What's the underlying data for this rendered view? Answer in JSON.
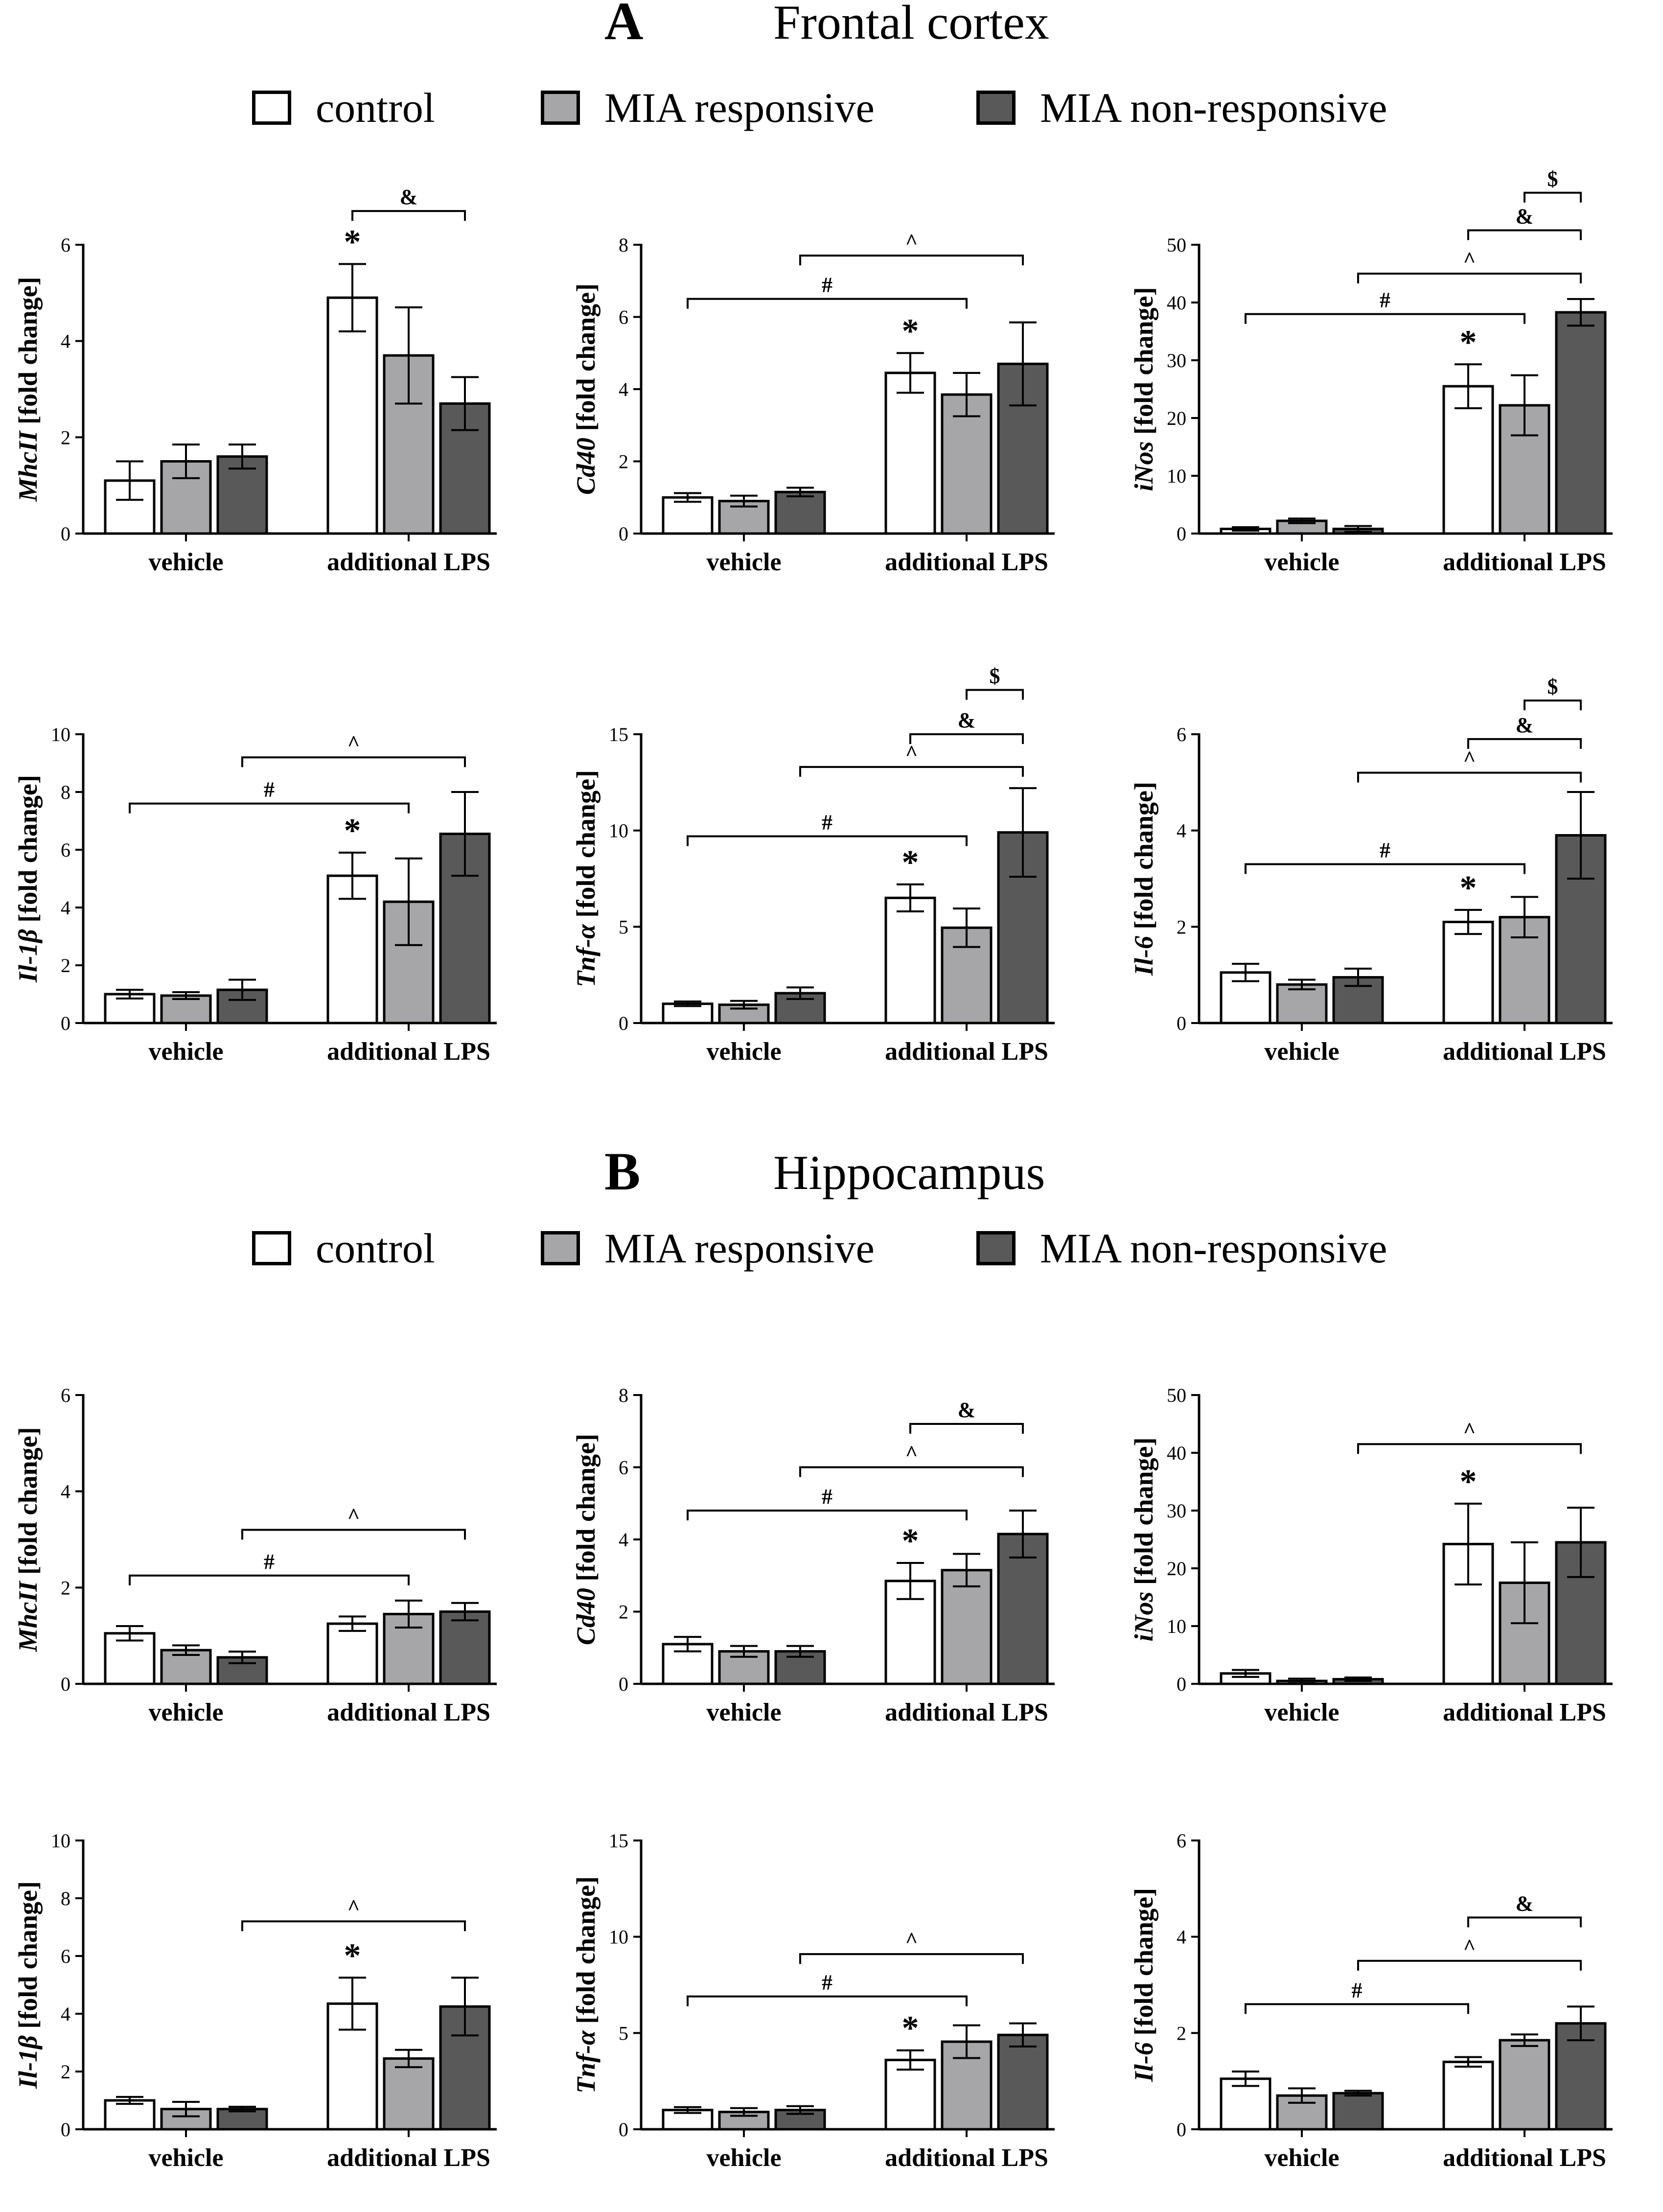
{
  "sections": [
    {
      "letter": "A",
      "title": "Frontal cortex"
    },
    {
      "letter": "B",
      "title": "Hippocampus"
    }
  ],
  "legend": [
    {
      "label": "control",
      "color": "#ffffff"
    },
    {
      "label": "MIA responsive",
      "color": "#a6a6a8"
    },
    {
      "label": "MIA non-responsive",
      "color": "#595959"
    }
  ],
  "chart_data": [
    {
      "type": "bar",
      "section": "Frontal cortex",
      "gene": "MhcII",
      "ylabel_suffix": " [fold change]",
      "categories": [
        "vehicle",
        "additional LPS"
      ],
      "ylim": [
        0,
        6
      ],
      "yticks": [
        0,
        2,
        4,
        6
      ],
      "series": [
        {
          "name": "control",
          "values": [
            1.1,
            4.9
          ],
          "errors": [
            0.4,
            0.7
          ]
        },
        {
          "name": "MIA responsive",
          "values": [
            1.5,
            3.7
          ],
          "errors": [
            0.35,
            1.0
          ]
        },
        {
          "name": "MIA non-responsive",
          "values": [
            1.6,
            2.7
          ],
          "errors": [
            0.25,
            0.55
          ]
        }
      ],
      "stars": [
        {
          "category": 1,
          "series": 0
        }
      ],
      "brackets": [
        {
          "label": "&",
          "from": [
            1,
            0
          ],
          "to": [
            1,
            2
          ],
          "y": 6.7
        }
      ]
    },
    {
      "type": "bar",
      "section": "Frontal cortex",
      "gene": "Cd40",
      "ylabel_suffix": " [fold change]",
      "categories": [
        "vehicle",
        "additional LPS"
      ],
      "ylim": [
        0,
        8
      ],
      "yticks": [
        0,
        2,
        4,
        6,
        8
      ],
      "series": [
        {
          "name": "control",
          "values": [
            1.0,
            4.45
          ],
          "errors": [
            0.12,
            0.55
          ]
        },
        {
          "name": "MIA responsive",
          "values": [
            0.9,
            3.85
          ],
          "errors": [
            0.15,
            0.6
          ]
        },
        {
          "name": "MIA non-responsive",
          "values": [
            1.15,
            4.7
          ],
          "errors": [
            0.12,
            1.15
          ]
        }
      ],
      "stars": [
        {
          "category": 1,
          "series": 0
        }
      ],
      "brackets": [
        {
          "label": "#",
          "from": [
            0,
            0
          ],
          "to": [
            1,
            1
          ],
          "y": 6.5
        },
        {
          "label": "^",
          "from": [
            0,
            2
          ],
          "to": [
            1,
            2
          ],
          "y": 7.7
        }
      ]
    },
    {
      "type": "bar",
      "section": "Frontal cortex",
      "gene": "iNos",
      "ylabel_suffix": " [fold change]",
      "categories": [
        "vehicle",
        "additional LPS"
      ],
      "ylim": [
        0,
        50
      ],
      "yticks": [
        0,
        10,
        20,
        30,
        40,
        50
      ],
      "series": [
        {
          "name": "control",
          "values": [
            0.8,
            25.5
          ],
          "errors": [
            0.3,
            3.8
          ]
        },
        {
          "name": "MIA responsive",
          "values": [
            2.2,
            22.2
          ],
          "errors": [
            0.4,
            5.2
          ]
        },
        {
          "name": "MIA non-responsive",
          "values": [
            0.8,
            38.3
          ],
          "errors": [
            0.5,
            2.3
          ]
        }
      ],
      "stars": [
        {
          "category": 1,
          "series": 0
        }
      ],
      "brackets": [
        {
          "label": "#",
          "from": [
            0,
            0
          ],
          "to": [
            1,
            1
          ],
          "y": 38.0
        },
        {
          "label": "^",
          "from": [
            0,
            2
          ],
          "to": [
            1,
            2
          ],
          "y": 45.0
        },
        {
          "label": "&",
          "from": [
            1,
            0
          ],
          "to": [
            1,
            2
          ],
          "y": 52.5
        },
        {
          "label": "$",
          "from": [
            1,
            1
          ],
          "to": [
            1,
            2
          ],
          "y": 59.0
        }
      ]
    },
    {
      "type": "bar",
      "section": "Frontal cortex",
      "gene": "Il-1β",
      "ylabel_suffix": " [fold change]",
      "categories": [
        "vehicle",
        "additional LPS"
      ],
      "ylim": [
        0,
        10
      ],
      "yticks": [
        0,
        2,
        4,
        6,
        8,
        10
      ],
      "series": [
        {
          "name": "control",
          "values": [
            1.0,
            5.1
          ],
          "errors": [
            0.15,
            0.8
          ]
        },
        {
          "name": "MIA responsive",
          "values": [
            0.95,
            4.2
          ],
          "errors": [
            0.12,
            1.5
          ]
        },
        {
          "name": "MIA non-responsive",
          "values": [
            1.15,
            6.55
          ],
          "errors": [
            0.35,
            1.45
          ]
        }
      ],
      "stars": [
        {
          "category": 1,
          "series": 0
        }
      ],
      "brackets": [
        {
          "label": "#",
          "from": [
            0,
            0
          ],
          "to": [
            1,
            1
          ],
          "y": 7.6
        },
        {
          "label": "^",
          "from": [
            0,
            2
          ],
          "to": [
            1,
            2
          ],
          "y": 9.2
        }
      ]
    },
    {
      "type": "bar",
      "section": "Frontal cortex",
      "gene": "Tnf-α",
      "ylabel_suffix": " [fold change]",
      "categories": [
        "vehicle",
        "additional LPS"
      ],
      "ylim": [
        0,
        15
      ],
      "yticks": [
        0,
        5,
        10,
        15
      ],
      "series": [
        {
          "name": "control",
          "values": [
            1.0,
            6.5
          ],
          "errors": [
            0.12,
            0.7
          ]
        },
        {
          "name": "MIA responsive",
          "values": [
            0.95,
            4.95
          ],
          "errors": [
            0.2,
            1.0
          ]
        },
        {
          "name": "MIA non-responsive",
          "values": [
            1.55,
            9.9
          ],
          "errors": [
            0.3,
            2.3
          ]
        }
      ],
      "stars": [
        {
          "category": 1,
          "series": 0
        }
      ],
      "brackets": [
        {
          "label": "#",
          "from": [
            0,
            0
          ],
          "to": [
            1,
            1
          ],
          "y": 9.7
        },
        {
          "label": "^",
          "from": [
            0,
            2
          ],
          "to": [
            1,
            2
          ],
          "y": 13.3
        },
        {
          "label": "&",
          "from": [
            1,
            0
          ],
          "to": [
            1,
            2
          ],
          "y": 15.0
        },
        {
          "label": "$",
          "from": [
            1,
            1
          ],
          "to": [
            1,
            2
          ],
          "y": 17.3
        }
      ]
    },
    {
      "type": "bar",
      "section": "Frontal cortex",
      "gene": "Il-6",
      "ylabel_suffix": " [fold change]",
      "categories": [
        "vehicle",
        "additional LPS"
      ],
      "ylim": [
        0,
        6
      ],
      "yticks": [
        0,
        2,
        4,
        6
      ],
      "series": [
        {
          "name": "control",
          "values": [
            1.05,
            2.1
          ],
          "errors": [
            0.18,
            0.25
          ]
        },
        {
          "name": "MIA responsive",
          "values": [
            0.8,
            2.2
          ],
          "errors": [
            0.1,
            0.42
          ]
        },
        {
          "name": "MIA non-responsive",
          "values": [
            0.95,
            3.9
          ],
          "errors": [
            0.18,
            0.9
          ]
        }
      ],
      "stars": [
        {
          "category": 1,
          "series": 0
        }
      ],
      "brackets": [
        {
          "label": "#",
          "from": [
            0,
            0
          ],
          "to": [
            1,
            1
          ],
          "y": 3.3
        },
        {
          "label": "^",
          "from": [
            0,
            2
          ],
          "to": [
            1,
            2
          ],
          "y": 5.2
        },
        {
          "label": "&",
          "from": [
            1,
            0
          ],
          "to": [
            1,
            2
          ],
          "y": 5.9
        },
        {
          "label": "$",
          "from": [
            1,
            1
          ],
          "to": [
            1,
            2
          ],
          "y": 6.7
        }
      ]
    },
    {
      "type": "bar",
      "section": "Hippocampus",
      "gene": "MhcII",
      "ylabel_suffix": " [fold change]",
      "categories": [
        "vehicle",
        "additional LPS"
      ],
      "ylim": [
        0,
        6
      ],
      "yticks": [
        0,
        2,
        4,
        6
      ],
      "series": [
        {
          "name": "control",
          "values": [
            1.05,
            1.25
          ],
          "errors": [
            0.15,
            0.15
          ]
        },
        {
          "name": "MIA responsive",
          "values": [
            0.7,
            1.45
          ],
          "errors": [
            0.1,
            0.28
          ]
        },
        {
          "name": "MIA non-responsive",
          "values": [
            0.55,
            1.5
          ],
          "errors": [
            0.12,
            0.18
          ]
        }
      ],
      "stars": [],
      "brackets": [
        {
          "label": "#",
          "from": [
            0,
            0
          ],
          "to": [
            1,
            1
          ],
          "y": 2.25
        },
        {
          "label": "^",
          "from": [
            0,
            2
          ],
          "to": [
            1,
            2
          ],
          "y": 3.2
        }
      ]
    },
    {
      "type": "bar",
      "section": "Hippocampus",
      "gene": "Cd40",
      "ylabel_suffix": " [fold change]",
      "categories": [
        "vehicle",
        "additional LPS"
      ],
      "ylim": [
        0,
        8
      ],
      "yticks": [
        0,
        2,
        4,
        6,
        8
      ],
      "series": [
        {
          "name": "control",
          "values": [
            1.1,
            2.85
          ],
          "errors": [
            0.2,
            0.5
          ]
        },
        {
          "name": "MIA responsive",
          "values": [
            0.9,
            3.15
          ],
          "errors": [
            0.15,
            0.45
          ]
        },
        {
          "name": "MIA non-responsive",
          "values": [
            0.9,
            4.15
          ],
          "errors": [
            0.15,
            0.65
          ]
        }
      ],
      "stars": [
        {
          "category": 1,
          "series": 0
        }
      ],
      "brackets": [
        {
          "label": "#",
          "from": [
            0,
            0
          ],
          "to": [
            1,
            1
          ],
          "y": 4.8
        },
        {
          "label": "^",
          "from": [
            0,
            2
          ],
          "to": [
            1,
            2
          ],
          "y": 6.0
        },
        {
          "label": "&",
          "from": [
            1,
            0
          ],
          "to": [
            1,
            2
          ],
          "y": 7.2
        }
      ]
    },
    {
      "type": "bar",
      "section": "Hippocampus",
      "gene": "iNos",
      "ylabel_suffix": " [fold change]",
      "categories": [
        "vehicle",
        "additional LPS"
      ],
      "ylim": [
        0,
        50
      ],
      "yticks": [
        0,
        10,
        20,
        30,
        40,
        50
      ],
      "series": [
        {
          "name": "control",
          "values": [
            1.8,
            24.2
          ],
          "errors": [
            0.6,
            7.0
          ]
        },
        {
          "name": "MIA responsive",
          "values": [
            0.5,
            17.5
          ],
          "errors": [
            0.4,
            7.0
          ]
        },
        {
          "name": "MIA non-responsive",
          "values": [
            0.8,
            24.5
          ],
          "errors": [
            0.3,
            6.0
          ]
        }
      ],
      "stars": [
        {
          "category": 1,
          "series": 0
        }
      ],
      "brackets": [
        {
          "label": "^",
          "from": [
            0,
            2
          ],
          "to": [
            1,
            2
          ],
          "y": 41.5
        }
      ]
    },
    {
      "type": "bar",
      "section": "Hippocampus",
      "gene": "Il-1β",
      "ylabel_suffix": " [fold change]",
      "categories": [
        "vehicle",
        "additional LPS"
      ],
      "ylim": [
        0,
        10
      ],
      "yticks": [
        0,
        2,
        4,
        6,
        8,
        10
      ],
      "series": [
        {
          "name": "control",
          "values": [
            1.0,
            4.35
          ],
          "errors": [
            0.12,
            0.9
          ]
        },
        {
          "name": "MIA responsive",
          "values": [
            0.7,
            2.45
          ],
          "errors": [
            0.25,
            0.3
          ]
        },
        {
          "name": "MIA non-responsive",
          "values": [
            0.7,
            4.25
          ],
          "errors": [
            0.08,
            1.0
          ]
        }
      ],
      "stars": [
        {
          "category": 1,
          "series": 0
        }
      ],
      "brackets": [
        {
          "label": "^",
          "from": [
            0,
            2
          ],
          "to": [
            1,
            2
          ],
          "y": 7.2
        }
      ]
    },
    {
      "type": "bar",
      "section": "Hippocampus",
      "gene": "Tnf-α",
      "ylabel_suffix": " [fold change]",
      "categories": [
        "vehicle",
        "additional LPS"
      ],
      "ylim": [
        0,
        15
      ],
      "yticks": [
        0,
        5,
        10,
        15
      ],
      "series": [
        {
          "name": "control",
          "values": [
            1.0,
            3.6
          ],
          "errors": [
            0.15,
            0.5
          ]
        },
        {
          "name": "MIA responsive",
          "values": [
            0.9,
            4.55
          ],
          "errors": [
            0.2,
            0.85
          ]
        },
        {
          "name": "MIA non-responsive",
          "values": [
            1.0,
            4.9
          ],
          "errors": [
            0.2,
            0.6
          ]
        }
      ],
      "stars": [
        {
          "category": 1,
          "series": 0
        }
      ],
      "brackets": [
        {
          "label": "#",
          "from": [
            0,
            0
          ],
          "to": [
            1,
            1
          ],
          "y": 6.9
        },
        {
          "label": "^",
          "from": [
            0,
            2
          ],
          "to": [
            1,
            2
          ],
          "y": 9.1
        }
      ]
    },
    {
      "type": "bar",
      "section": "Hippocampus",
      "gene": "Il-6",
      "ylabel_suffix": " [fold change]",
      "categories": [
        "vehicle",
        "additional LPS"
      ],
      "ylim": [
        0,
        6
      ],
      "yticks": [
        0,
        2,
        4,
        6
      ],
      "series": [
        {
          "name": "control",
          "values": [
            1.05,
            1.4
          ],
          "errors": [
            0.15,
            0.1
          ]
        },
        {
          "name": "MIA responsive",
          "values": [
            0.7,
            1.85
          ],
          "errors": [
            0.15,
            0.12
          ]
        },
        {
          "name": "MIA non-responsive",
          "values": [
            0.75,
            2.2
          ],
          "errors": [
            0.05,
            0.35
          ]
        }
      ],
      "stars": [],
      "brackets": [
        {
          "label": "#",
          "from": [
            0,
            0
          ],
          "to": [
            1,
            0
          ],
          "y": 2.6
        },
        {
          "label": "^",
          "from": [
            0,
            2
          ],
          "to": [
            1,
            2
          ],
          "y": 3.5
        },
        {
          "label": "&",
          "from": [
            1,
            0
          ],
          "to": [
            1,
            2
          ],
          "y": 4.4
        }
      ]
    }
  ]
}
